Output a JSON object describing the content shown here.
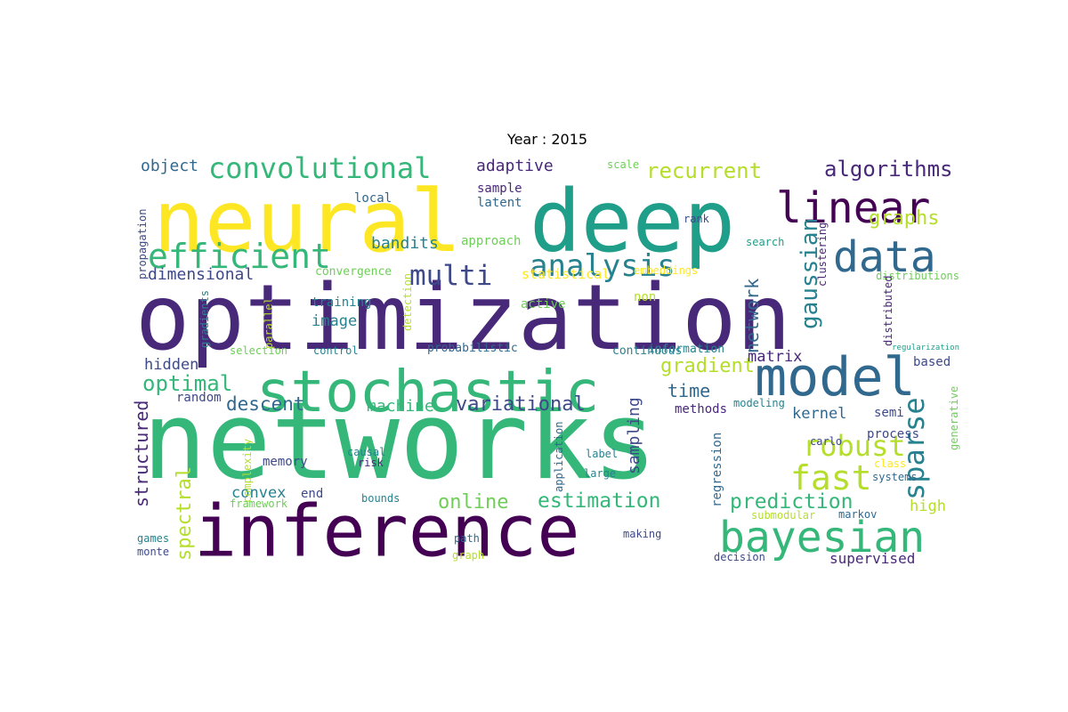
{
  "title": "Year : 2015",
  "word_cloud": {
    "colors": {
      "background": "#ffffff",
      "palette": [
        "#440154",
        "#482878",
        "#3e4989",
        "#31688e",
        "#26828e",
        "#1f9e89",
        "#35b779",
        "#6ece58",
        "#b5de2b",
        "#fde725"
      ]
    },
    "words": [
      {
        "text": "networks",
        "color": "#35b779"
      },
      {
        "text": "optimization",
        "color": "#482878"
      },
      {
        "text": "inference",
        "color": "#440154"
      },
      {
        "text": "deep",
        "color": "#1f9e89"
      },
      {
        "text": "neural",
        "color": "#fde725"
      },
      {
        "text": "stochastic",
        "color": "#35b779"
      },
      {
        "text": "model",
        "color": "#31688e"
      },
      {
        "text": "linear",
        "color": "#440154"
      },
      {
        "text": "data",
        "color": "#31688e"
      },
      {
        "text": "bayesian",
        "color": "#35b779"
      },
      {
        "text": "efficient",
        "color": "#35b779"
      },
      {
        "text": "analysis",
        "color": "#26828e"
      },
      {
        "text": "convolutional",
        "color": "#35b779"
      },
      {
        "text": "robust",
        "color": "#b5de2b"
      },
      {
        "text": "fast",
        "color": "#b5de2b"
      },
      {
        "text": "sparse",
        "color": "#26828e"
      },
      {
        "text": "multi",
        "color": "#3e4989"
      },
      {
        "text": "algorithms",
        "color": "#482878"
      },
      {
        "text": "recurrent",
        "color": "#b5de2b"
      },
      {
        "text": "gaussian",
        "color": "#26828e"
      },
      {
        "text": "prediction",
        "color": "#35b779"
      },
      {
        "text": "estimation",
        "color": "#35b779"
      },
      {
        "text": "online",
        "color": "#6ece58"
      },
      {
        "text": "spectral",
        "color": "#b5de2b"
      },
      {
        "text": "variational",
        "color": "#3e4989"
      },
      {
        "text": "gradient",
        "color": "#b5de2b"
      },
      {
        "text": "optimal",
        "color": "#35b779"
      },
      {
        "text": "descent",
        "color": "#31688e"
      },
      {
        "text": "graphs",
        "color": "#b5de2b"
      },
      {
        "text": "network",
        "color": "#31688e"
      },
      {
        "text": "structured",
        "color": "#482878"
      },
      {
        "text": "adaptive",
        "color": "#482878"
      },
      {
        "text": "bandits",
        "color": "#26828e"
      },
      {
        "text": "dimensional",
        "color": "#3e4989"
      },
      {
        "text": "time",
        "color": "#31688e"
      },
      {
        "text": "sampling",
        "color": "#3e4989"
      },
      {
        "text": "machine",
        "color": "#35b779"
      },
      {
        "text": "object",
        "color": "#31688e"
      },
      {
        "text": "hidden",
        "color": "#3e4989"
      },
      {
        "text": "matrix",
        "color": "#482878"
      },
      {
        "text": "kernel",
        "color": "#31688e"
      },
      {
        "text": "convex",
        "color": "#26828e"
      },
      {
        "text": "image",
        "color": "#26828e"
      },
      {
        "text": "high",
        "color": "#b5de2b"
      },
      {
        "text": "supervised",
        "color": "#482878"
      },
      {
        "text": "random",
        "color": "#3e4989"
      },
      {
        "text": "active",
        "color": "#6ece58"
      },
      {
        "text": "statistical",
        "color": "#fde725"
      },
      {
        "text": "approach",
        "color": "#6ece58"
      },
      {
        "text": "sample",
        "color": "#482878"
      },
      {
        "text": "latent",
        "color": "#31688e"
      },
      {
        "text": "local",
        "color": "#31688e"
      },
      {
        "text": "semi",
        "color": "#3e4989"
      },
      {
        "text": "process",
        "color": "#3e4989"
      },
      {
        "text": "methods",
        "color": "#482878"
      },
      {
        "text": "memory",
        "color": "#3e4989"
      },
      {
        "text": "end",
        "color": "#3e4989"
      },
      {
        "text": "regression",
        "color": "#31688e"
      },
      {
        "text": "based",
        "color": "#3e4989"
      },
      {
        "text": "training",
        "color": "#26828e"
      },
      {
        "text": "non",
        "color": "#b5de2b"
      },
      {
        "text": "continuous",
        "color": "#26828e"
      },
      {
        "text": "information",
        "color": "#26828e"
      },
      {
        "text": "probabilistic",
        "color": "#31688e"
      },
      {
        "text": "convergence",
        "color": "#6ece58"
      },
      {
        "text": "distributions",
        "color": "#6ece58"
      },
      {
        "text": "detection",
        "color": "#b5de2b"
      },
      {
        "text": "parallel",
        "color": "#b5de2b"
      },
      {
        "text": "embeddings",
        "color": "#fde725"
      },
      {
        "text": "search",
        "color": "#1f9e89"
      },
      {
        "text": "rank",
        "color": "#3e4989"
      },
      {
        "text": "scale",
        "color": "#6ece58"
      },
      {
        "text": "clustering",
        "color": "#482878"
      },
      {
        "text": "distributed",
        "color": "#482878"
      },
      {
        "text": "regularization",
        "color": "#1f9e89"
      },
      {
        "text": "generative",
        "color": "#6ece58"
      },
      {
        "text": "propagation",
        "color": "#3e4989"
      },
      {
        "text": "gradients",
        "color": "#26828e"
      },
      {
        "text": "selection",
        "color": "#6ece58"
      },
      {
        "text": "control",
        "color": "#26828e"
      },
      {
        "text": "modeling",
        "color": "#26828e"
      },
      {
        "text": "causal",
        "color": "#26828e"
      },
      {
        "text": "risk",
        "color": "#482878"
      },
      {
        "text": "bounds",
        "color": "#26828e"
      },
      {
        "text": "label",
        "color": "#26828e"
      },
      {
        "text": "large",
        "color": "#26828e"
      },
      {
        "text": "application",
        "color": "#31688e"
      },
      {
        "text": "carlo",
        "color": "#3e4989"
      },
      {
        "text": "class",
        "color": "#fde725"
      },
      {
        "text": "systems",
        "color": "#31688e"
      },
      {
        "text": "markov",
        "color": "#31688e"
      },
      {
        "text": "submodular",
        "color": "#b5de2b"
      },
      {
        "text": "complexity",
        "color": "#b5de2b"
      },
      {
        "text": "framework",
        "color": "#6ece58"
      },
      {
        "text": "games",
        "color": "#26828e"
      },
      {
        "text": "monte",
        "color": "#3e4989"
      },
      {
        "text": "path",
        "color": "#31688e"
      },
      {
        "text": "graph",
        "color": "#b5de2b"
      },
      {
        "text": "making",
        "color": "#3e4989"
      },
      {
        "text": "decision",
        "color": "#3e4989"
      }
    ]
  }
}
